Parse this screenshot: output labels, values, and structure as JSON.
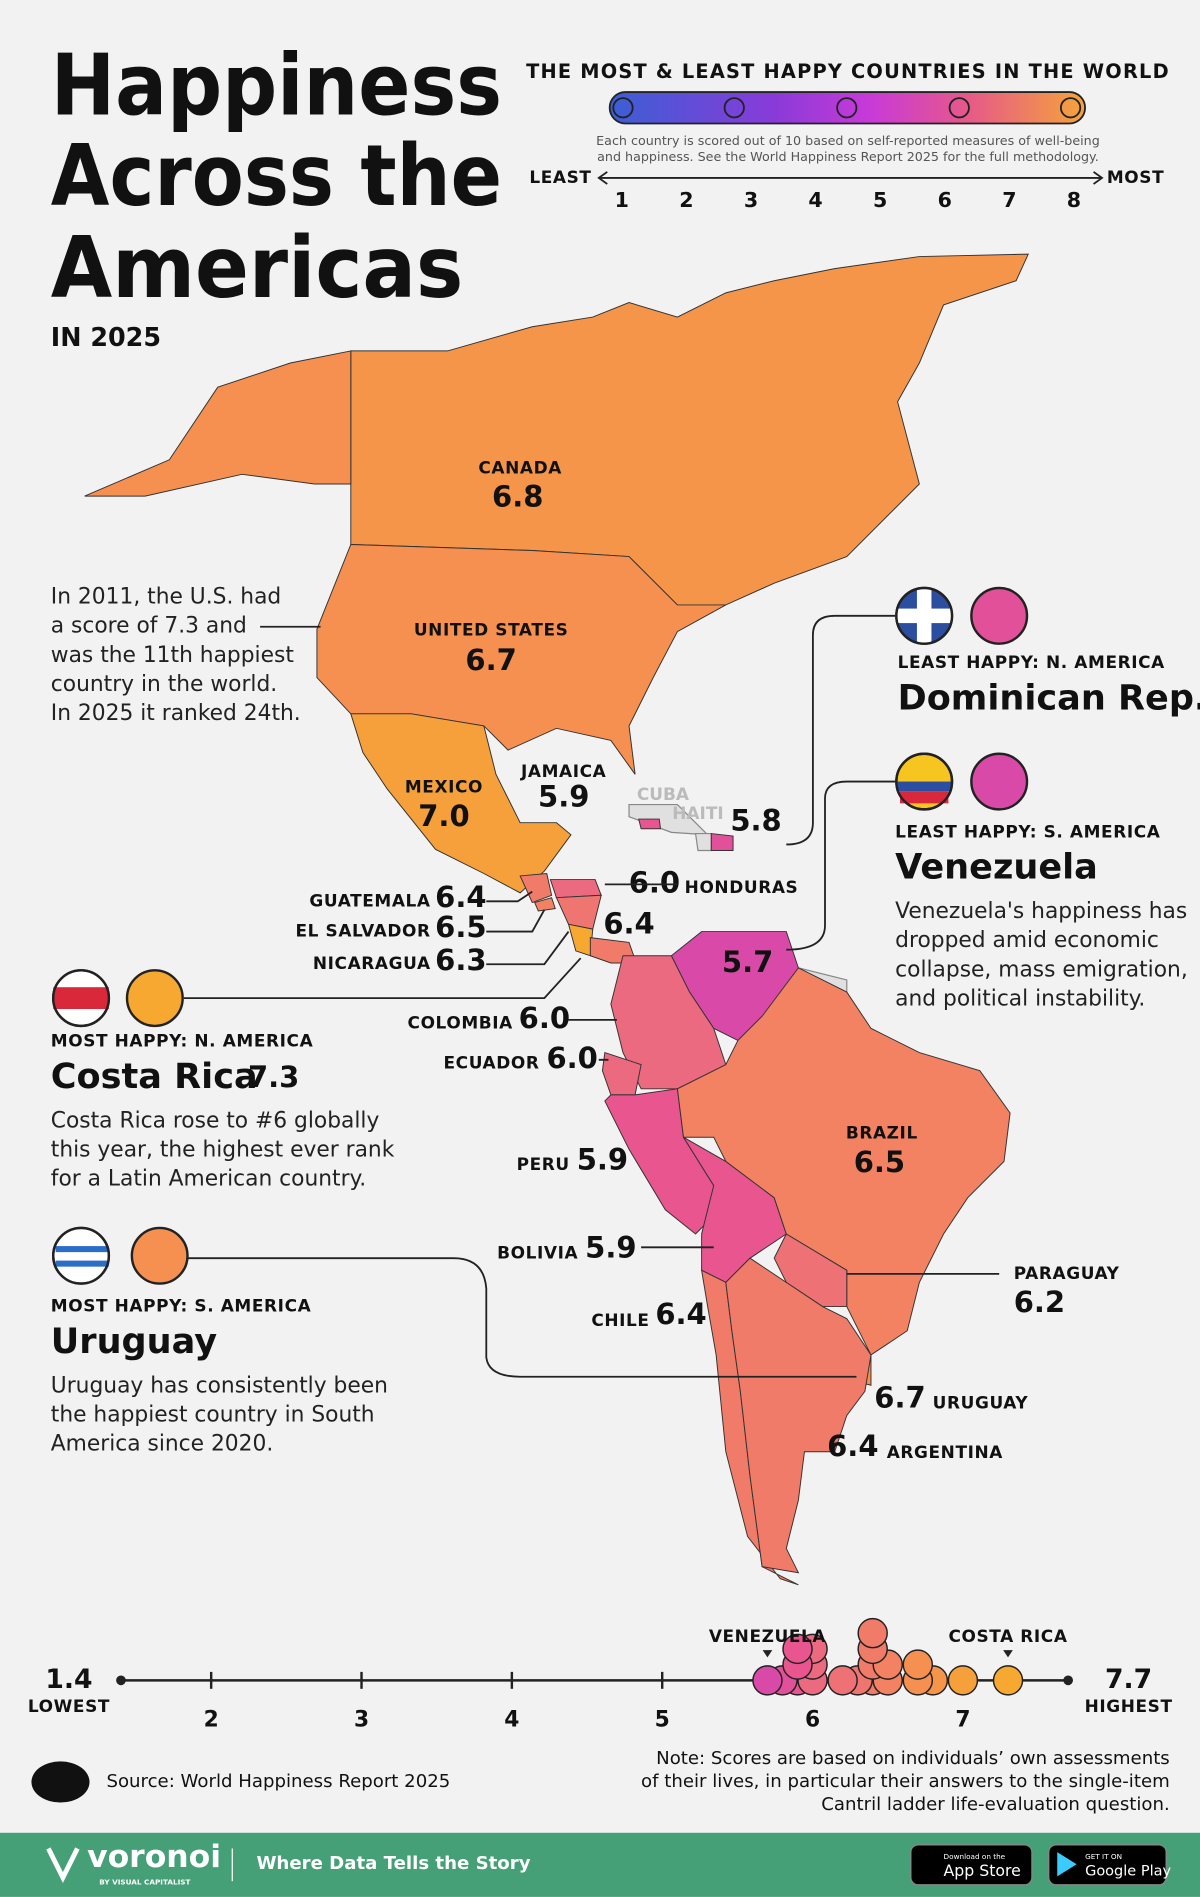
{
  "header": {
    "title_lines": [
      "Happiness",
      "Across the",
      "Americas"
    ],
    "subtitle": "IN 2025"
  },
  "legend": {
    "title": "THE MOST & LEAST HAPPY COUNTRIES IN THE WORLD",
    "note_lines": [
      "Each country is scored out of 10 based on self-reported measures of well-being",
      "and happiness. See the World Happiness Report 2025 for the full methodology."
    ],
    "least": "LEAST",
    "most": "MOST",
    "scale": [
      1,
      2,
      3,
      4,
      5,
      6,
      7,
      8
    ]
  },
  "countries": [
    {
      "name": "CANADA",
      "score": 6.8,
      "color": "#f5954a"
    },
    {
      "name": "UNITED STATES",
      "score": 6.7,
      "color": "#f59050"
    },
    {
      "name": "MEXICO",
      "score": 7.0,
      "score_label": "7.0",
      "color": "#f6a03c"
    },
    {
      "name": "JAMAICA",
      "score": 5.9,
      "color": "#e8558f"
    },
    {
      "name": null,
      "score": 5.8,
      "color": "#e2509a"
    },
    {
      "name": "HONDURAS",
      "score": 6.0,
      "score_label": "6.0",
      "color": "#ec6a80"
    },
    {
      "name": "GUATEMALA",
      "score": 6.4,
      "color": "#f07b68"
    },
    {
      "name": "EL SALVADOR",
      "score": 6.5,
      "color": "#f28262"
    },
    {
      "name": "NICARAGUA",
      "score": 6.3,
      "color": "#ef7670"
    },
    {
      "name": null,
      "score": 7.3,
      "color": "#f7a830"
    },
    {
      "name": null,
      "score": 6.4,
      "color": "#f07b68"
    },
    {
      "name": null,
      "score": 5.7,
      "color": "#d94aa8"
    },
    {
      "name": "COLOMBIA",
      "score": 6.0,
      "score_label": "6.0",
      "color": "#ec6a80"
    },
    {
      "name": "ECUADOR",
      "score": 6.0,
      "score_label": "6.0",
      "color": "#ec6a80"
    },
    {
      "name": "PERU",
      "score": 5.9,
      "color": "#e8558f"
    },
    {
      "name": "BOLIVIA",
      "score": 5.9,
      "color": "#e8558f"
    },
    {
      "name": "BRAZIL",
      "score": 6.5,
      "color": "#f28262"
    },
    {
      "name": "PARAGUAY",
      "score": 6.2,
      "color": "#ee7275"
    },
    {
      "name": "CHILE",
      "score": 6.4,
      "color": "#f07b68"
    },
    {
      "name": "URUGUAY",
      "score": 6.7,
      "color": "#f59050"
    },
    {
      "name": "ARGENTINA",
      "score": 6.4,
      "color": "#f07b68"
    }
  ],
  "unscored": [
    "CUBA",
    "HAITI"
  ],
  "us_note": [
    "In 2011, the U.S. had",
    "a score of 7.3 and",
    "was the 11th happiest",
    "country in the world.",
    "In 2025 it ranked 24th."
  ],
  "callouts": [
    {
      "kicker": "LEAST HAPPY: N. AMERICA",
      "title": "Dominican Rep.",
      "lines": []
    },
    {
      "kicker": "LEAST HAPPY: S. AMERICA",
      "title": "Venezuela",
      "lines": [
        "Venezuela's happiness has",
        "dropped amid economic",
        "collapse, mass emigration,",
        "and political instability."
      ]
    },
    {
      "kicker": "MOST HAPPY: N. AMERICA",
      "title": "Costa Rica",
      "lines": [
        "Costa Rica rose to #6 globally",
        "this year, the highest ever rank",
        "for a Latin American country."
      ]
    },
    {
      "kicker": "MOST HAPPY: S. AMERICA",
      "title": "Uruguay",
      "lines": [
        "Uruguay has consistently been",
        "the happiest country in South",
        "America since 2020."
      ]
    }
  ],
  "axis": {
    "min": 1.4,
    "min_caption": "LOWEST",
    "max": 7.7,
    "max_caption": "HIGHEST",
    "ticks": [
      2,
      3,
      4,
      5,
      6,
      7
    ],
    "markers": [
      "VENEZUELA",
      "COSTA RICA"
    ]
  },
  "source": "Source: World Happiness Report 2025",
  "note_lines": [
    "Note: Scores are based on individuals’ own assessments",
    "of their lives, in particular their answers to the single-item",
    "Cantril ladder life-evaluation question."
  ],
  "footer": {
    "brand": "voronoi",
    "byline": "BY VISUAL CAPITALIST",
    "tagline": "Where Data Tells the Story",
    "app_store": [
      "Download on the",
      "App Store"
    ],
    "google_play": [
      "GET IT ON",
      "Google Play"
    ]
  }
}
